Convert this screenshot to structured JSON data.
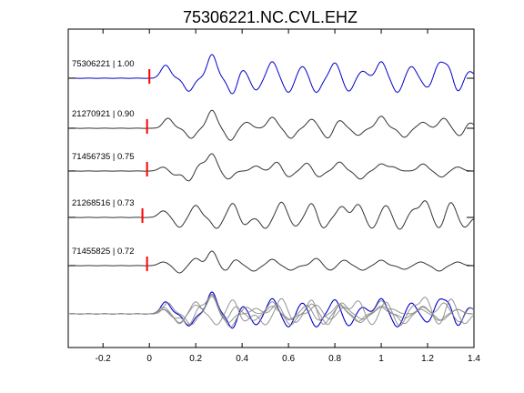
{
  "chart_data": {
    "type": "line",
    "title": "75306221.NC.CVL.EHZ",
    "xlabel": "",
    "ylabel": "",
    "xlim": [
      -0.35,
      1.4
    ],
    "x_ticks": [
      -0.2,
      0,
      0.2,
      0.4,
      0.6,
      0.8,
      1,
      1.2,
      1.4
    ],
    "x_tick_labels": [
      "-0.2",
      "0",
      "0.2",
      "0.4",
      "0.6",
      "0.8",
      "1",
      "1.2",
      "1.4"
    ],
    "grid": false,
    "legend": "none",
    "colors": {
      "primary": "#0000cc",
      "secondary": "#333333",
      "overlay": "#888888",
      "pick": "#ff0000"
    },
    "traces": [
      {
        "label": "75306221 | 1.00",
        "event": "75306221",
        "correlation": 1.0,
        "color": "#0000cc",
        "pick_time": 0.0,
        "seed": 1,
        "events": [
          [
            0.07,
            0.55
          ],
          [
            0.17,
            -0.55
          ],
          [
            0.27,
            1.0
          ],
          [
            0.36,
            -0.7
          ],
          [
            0.4,
            0.4
          ],
          [
            0.46,
            -0.5
          ],
          [
            0.53,
            0.7
          ],
          [
            0.6,
            -0.6
          ],
          [
            0.66,
            0.5
          ],
          [
            0.72,
            -0.6
          ],
          [
            0.8,
            0.65
          ],
          [
            0.86,
            -0.55
          ],
          [
            0.92,
            0.3
          ],
          [
            1.0,
            0.7
          ],
          [
            1.07,
            -0.6
          ],
          [
            1.13,
            0.5
          ],
          [
            1.2,
            -0.4
          ],
          [
            1.25,
            0.6
          ],
          [
            1.29,
            0.5
          ],
          [
            1.33,
            -0.6
          ],
          [
            1.38,
            0.3
          ]
        ]
      },
      {
        "label": "21270921 | 0.90",
        "event": "21270921",
        "correlation": 0.9,
        "color": "#333333",
        "pick_time": -0.01,
        "seed": 2,
        "events": [
          [
            0.08,
            0.5
          ],
          [
            0.18,
            -0.5
          ],
          [
            0.27,
            0.9
          ],
          [
            0.35,
            -0.6
          ],
          [
            0.42,
            0.3
          ],
          [
            0.53,
            0.55
          ],
          [
            0.61,
            -0.5
          ],
          [
            0.7,
            0.45
          ],
          [
            0.77,
            -0.5
          ],
          [
            0.82,
            0.4
          ],
          [
            0.9,
            -0.35
          ],
          [
            1.0,
            0.6
          ],
          [
            1.1,
            -0.45
          ],
          [
            1.18,
            0.3
          ],
          [
            1.27,
            0.5
          ],
          [
            1.34,
            -0.4
          ],
          [
            1.38,
            0.3
          ]
        ]
      },
      {
        "label": "71456735 | 0.75",
        "event": "71456735",
        "correlation": 0.75,
        "color": "#333333",
        "pick_time": -0.01,
        "seed": 3,
        "events": [
          [
            0.06,
            0.2
          ],
          [
            0.11,
            -0.2
          ],
          [
            0.17,
            -0.5
          ],
          [
            0.22,
            0.35
          ],
          [
            0.27,
            0.85
          ],
          [
            0.34,
            -0.4
          ],
          [
            0.46,
            0.25
          ],
          [
            0.55,
            0.45
          ],
          [
            0.6,
            -0.3
          ],
          [
            0.68,
            0.4
          ],
          [
            0.73,
            -0.3
          ],
          [
            0.82,
            0.45
          ],
          [
            0.91,
            -0.4
          ],
          [
            1.0,
            0.35
          ],
          [
            1.05,
            0.2
          ],
          [
            1.18,
            0.35
          ],
          [
            1.26,
            -0.3
          ],
          [
            1.33,
            0.2
          ]
        ]
      },
      {
        "label": "21268516 | 0.73",
        "event": "21268516",
        "correlation": 0.73,
        "color": "#333333",
        "pick_time": -0.03,
        "seed": 4,
        "events": [
          [
            0.06,
            0.3
          ],
          [
            0.13,
            -0.45
          ],
          [
            0.2,
            0.55
          ],
          [
            0.29,
            -0.5
          ],
          [
            0.36,
            0.65
          ],
          [
            0.41,
            -0.35
          ],
          [
            0.5,
            -0.5
          ],
          [
            0.57,
            0.7
          ],
          [
            0.63,
            -0.4
          ],
          [
            0.7,
            0.65
          ],
          [
            0.75,
            -0.5
          ],
          [
            0.83,
            0.5
          ],
          [
            0.9,
            0.6
          ],
          [
            0.96,
            -0.5
          ],
          [
            1.02,
            0.55
          ],
          [
            1.08,
            -0.55
          ],
          [
            1.14,
            0.35
          ],
          [
            1.19,
            0.75
          ],
          [
            1.25,
            -0.5
          ],
          [
            1.3,
            0.7
          ],
          [
            1.36,
            -0.45
          ]
        ]
      },
      {
        "label": "71455825 | 0.72",
        "event": "71455825",
        "correlation": 0.72,
        "color": "#333333",
        "pick_time": -0.01,
        "seed": 5,
        "events": [
          [
            0.06,
            0.2
          ],
          [
            0.13,
            -0.4
          ],
          [
            0.2,
            0.4
          ],
          [
            0.27,
            0.8
          ],
          [
            0.33,
            -0.3
          ],
          [
            0.37,
            0.35
          ],
          [
            0.45,
            -0.3
          ],
          [
            0.53,
            0.35
          ],
          [
            0.61,
            -0.25
          ],
          [
            0.72,
            0.4
          ],
          [
            0.78,
            -0.25
          ],
          [
            0.84,
            0.3
          ],
          [
            0.92,
            -0.25
          ],
          [
            1.0,
            0.3
          ],
          [
            1.1,
            -0.2
          ],
          [
            1.17,
            0.2
          ],
          [
            1.25,
            -0.3
          ],
          [
            1.33,
            0.2
          ]
        ]
      }
    ]
  }
}
